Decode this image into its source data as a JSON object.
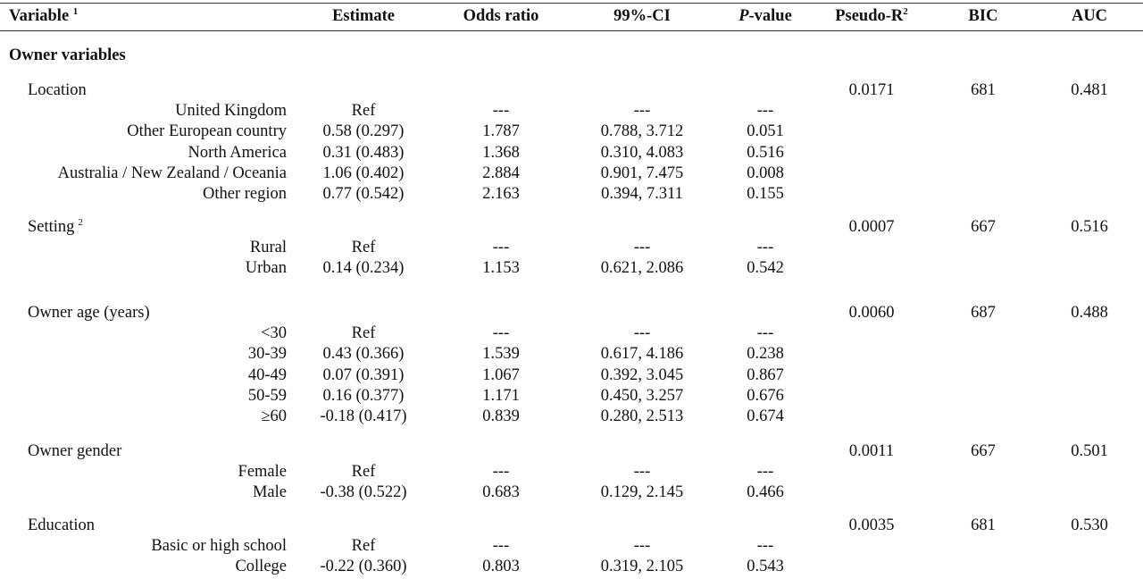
{
  "header": {
    "variable": "Variable",
    "variable_sup": "1",
    "estimate": "Estimate",
    "odds_ratio": "Odds ratio",
    "ci": "99%-CI",
    "pvalue_p": "P",
    "pvalue_rest": "-value",
    "pseudo_r": "Pseudo-R",
    "pseudo_r_sup": "2",
    "bic": "BIC",
    "auc": "AUC"
  },
  "section_title": "Owner variables",
  "groups": [
    {
      "label": "Location",
      "label_sup": "",
      "pseudo_r2": "0.0171",
      "bic": "681",
      "auc": "0.481",
      "rows": [
        {
          "label": "United Kingdom",
          "estimate": "Ref",
          "odds_ratio": "---",
          "ci": "---",
          "p": "---"
        },
        {
          "label": "Other European country",
          "estimate": "0.58 (0.297)",
          "odds_ratio": "1.787",
          "ci": "0.788, 3.712",
          "p": "0.051"
        },
        {
          "label": "North America",
          "estimate": "0.31 (0.483)",
          "odds_ratio": "1.368",
          "ci": "0.310, 4.083",
          "p": "0.516"
        },
        {
          "label": "Australia / New Zealand / Oceania",
          "estimate": "1.06 (0.402)",
          "odds_ratio": "2.884",
          "ci": "0.901, 7.475",
          "p": "0.008"
        },
        {
          "label": "Other region",
          "estimate": "0.77 (0.542)",
          "odds_ratio": "2.163",
          "ci": "0.394, 7.311",
          "p": "0.155"
        }
      ]
    },
    {
      "label": "Setting",
      "label_sup": "2",
      "pseudo_r2": "0.0007",
      "bic": "667",
      "auc": "0.516",
      "rows": [
        {
          "label": "Rural",
          "estimate": "Ref",
          "odds_ratio": "---",
          "ci": "---",
          "p": "---"
        },
        {
          "label": "Urban",
          "estimate": "0.14 (0.234)",
          "odds_ratio": "1.153",
          "ci": "0.621, 2.086",
          "p": "0.542"
        }
      ]
    },
    {
      "label": "Owner age (years)",
      "label_sup": "",
      "pseudo_r2": "0.0060",
      "bic": "687",
      "auc": "0.488",
      "rows": [
        {
          "label": "<30",
          "estimate": "Ref",
          "odds_ratio": "---",
          "ci": "---",
          "p": "---"
        },
        {
          "label": "30-39",
          "estimate": "0.43 (0.366)",
          "odds_ratio": "1.539",
          "ci": "0.617, 4.186",
          "p": "0.238"
        },
        {
          "label": "40-49",
          "estimate": "0.07 (0.391)",
          "odds_ratio": "1.067",
          "ci": "0.392, 3.045",
          "p": "0.867"
        },
        {
          "label": "50-59",
          "estimate": "0.16 (0.377)",
          "odds_ratio": "1.171",
          "ci": "0.450, 3.257",
          "p": "0.676"
        },
        {
          "label": "≥60",
          "estimate": "-0.18 (0.417)",
          "odds_ratio": "0.839",
          "ci": "0.280, 2.513",
          "p": "0.674"
        }
      ]
    },
    {
      "label": "Owner gender",
      "label_sup": "",
      "pseudo_r2": "0.0011",
      "bic": "667",
      "auc": "0.501",
      "rows": [
        {
          "label": "Female",
          "estimate": "Ref",
          "odds_ratio": "---",
          "ci": "---",
          "p": "---"
        },
        {
          "label": "Male",
          "estimate": "-0.38 (0.522)",
          "odds_ratio": "0.683",
          "ci": "0.129, 2.145",
          "p": "0.466"
        }
      ]
    },
    {
      "label": "Education",
      "label_sup": "",
      "pseudo_r2": "0.0035",
      "bic": "681",
      "auc": "0.530",
      "rows": [
        {
          "label": "Basic or high school",
          "estimate": "Ref",
          "odds_ratio": "---",
          "ci": "---",
          "p": "---"
        },
        {
          "label": "College",
          "estimate": "-0.22 (0.360)",
          "odds_ratio": "0.803",
          "ci": "0.319, 2.105",
          "p": "0.543"
        }
      ]
    }
  ]
}
